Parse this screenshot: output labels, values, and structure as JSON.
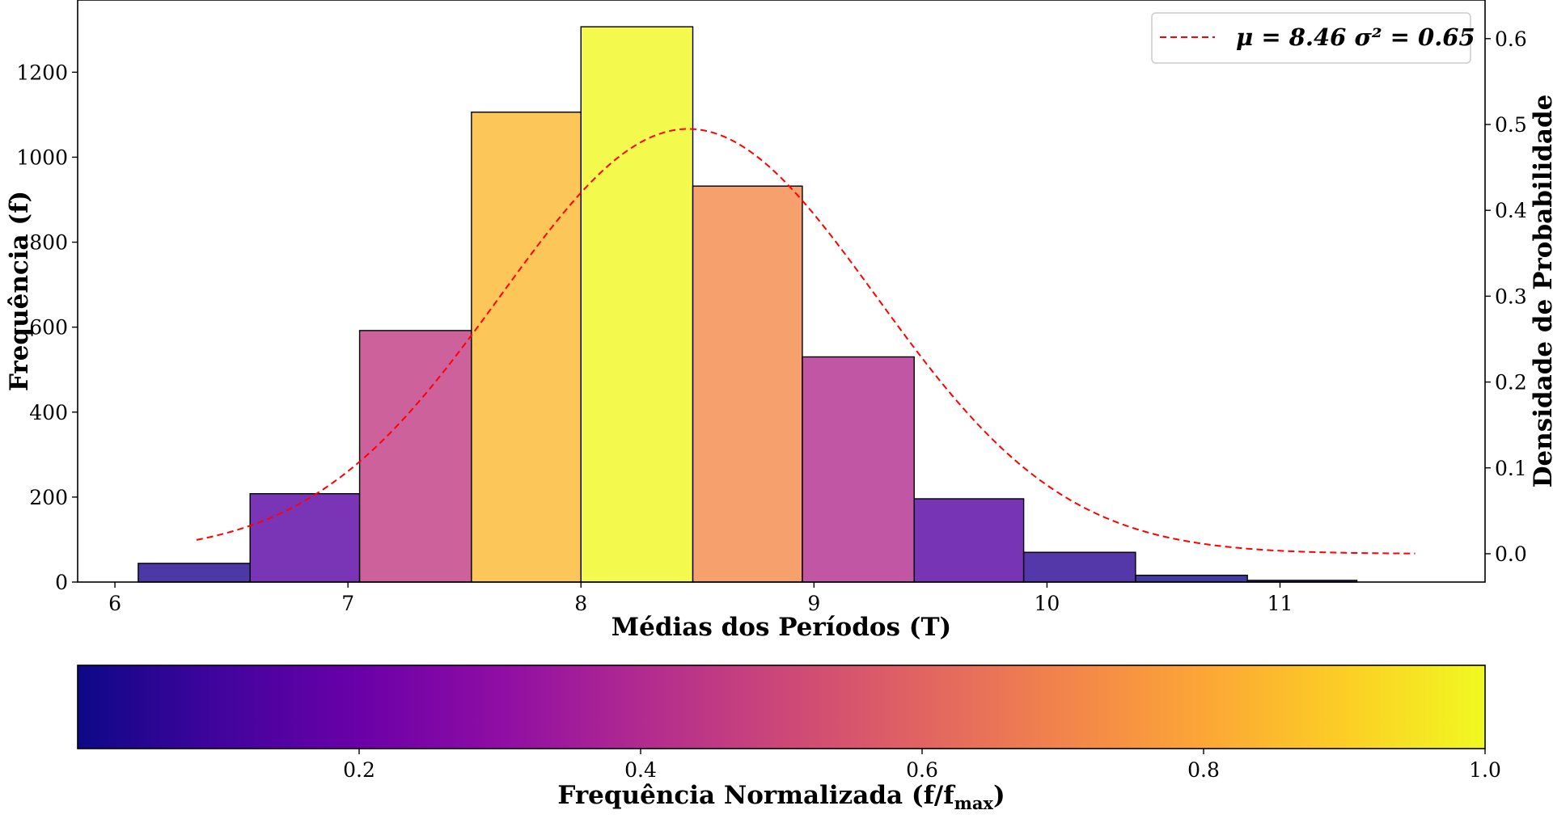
{
  "chart_data": [
    {
      "type": "bar",
      "subtype": "histogram",
      "xlabel": "Médias dos Períodos (T)",
      "ylabel": "Frequência (f)",
      "y2label": "Densidade de Probabilidade",
      "xlim": [
        5.84,
        11.88
      ],
      "ylim": [
        0,
        1370
      ],
      "y2lim": [
        -0.033,
        0.645
      ],
      "xticks": [
        "6",
        "7",
        "8",
        "9",
        "10",
        "11"
      ],
      "yticks": [
        "0",
        "200",
        "400",
        "600",
        "800",
        "1000",
        "1200"
      ],
      "y2ticks": [
        "0.0",
        "0.1",
        "0.2",
        "0.3",
        "0.4",
        "0.5",
        "0.6"
      ],
      "bins": [
        {
          "x0": 6.1,
          "x1": 6.58,
          "value": 44
        },
        {
          "x0": 6.58,
          "x1": 7.05,
          "value": 208
        },
        {
          "x0": 7.05,
          "x1": 7.53,
          "value": 592
        },
        {
          "x0": 7.53,
          "x1": 8.0,
          "value": 1106
        },
        {
          "x0": 8.0,
          "x1": 8.48,
          "value": 1307
        },
        {
          "x0": 8.48,
          "x1": 8.95,
          "value": 932
        },
        {
          "x0": 8.95,
          "x1": 9.43,
          "value": 530
        },
        {
          "x0": 9.43,
          "x1": 9.9,
          "value": 196
        },
        {
          "x0": 9.9,
          "x1": 10.38,
          "value": 70
        },
        {
          "x0": 10.38,
          "x1": 10.86,
          "value": 16
        },
        {
          "x0": 10.86,
          "x1": 11.33,
          "value": 4
        }
      ],
      "fit": {
        "type": "normal",
        "axis": "right",
        "mu": 8.46,
        "sigma2": 0.65,
        "x_range": [
          6.35,
          11.58
        ],
        "color": "#ff0000",
        "style": "dashed",
        "legend_label": "μ = 8.46 σ² = 0.65"
      },
      "legend_position": "top-right",
      "grid": false,
      "colormap": "plasma",
      "bar_edge_color": "#000000"
    },
    {
      "type": "colorbar",
      "xlabel": "Frequência Normalizada (f/f",
      "xlabel_subscript": "max",
      "xlabel_suffix": ")",
      "range": [
        0.0,
        1.0
      ],
      "ticks": [
        "0.2",
        "0.4",
        "0.6",
        "0.8",
        "1.0"
      ],
      "colormap": "plasma",
      "orientation": "horizontal"
    }
  ]
}
